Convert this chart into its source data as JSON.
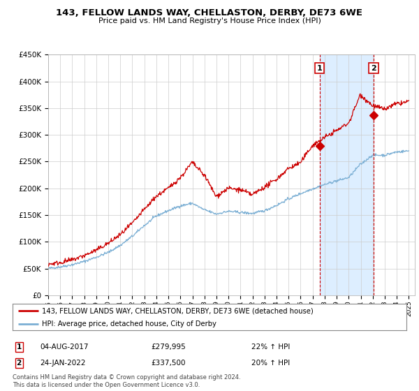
{
  "title": "143, FELLOW LANDS WAY, CHELLASTON, DERBY, DE73 6WE",
  "subtitle": "Price paid vs. HM Land Registry's House Price Index (HPI)",
  "legend_line1": "143, FELLOW LANDS WAY, CHELLASTON, DERBY, DE73 6WE (detached house)",
  "legend_line2": "HPI: Average price, detached house, City of Derby",
  "transaction1_date": "04-AUG-2017",
  "transaction1_price": "£279,995",
  "transaction1_hpi": "22% ↑ HPI",
  "transaction1_year": 2017.58,
  "transaction1_value": 279995,
  "transaction2_date": "24-JAN-2022",
  "transaction2_price": "£337,500",
  "transaction2_hpi": "20% ↑ HPI",
  "transaction2_year": 2022.07,
  "transaction2_value": 337500,
  "footer": "Contains HM Land Registry data © Crown copyright and database right 2024.\nThis data is licensed under the Open Government Licence v3.0.",
  "red_color": "#cc0000",
  "blue_color": "#7bafd4",
  "shade_color": "#ddeeff",
  "ylim": [
    0,
    450000
  ],
  "xlim_start": 1995.0,
  "xlim_end": 2025.5,
  "bg_color": "#ffffff",
  "grid_color": "#cccccc",
  "hpi_base_years": [
    1995,
    1996,
    1997,
    1998,
    1999,
    2000,
    2001,
    2002,
    2003,
    2004,
    2005,
    2006,
    2007,
    2008,
    2009,
    2010,
    2011,
    2012,
    2013,
    2014,
    2015,
    2016,
    2017,
    2018,
    2019,
    2020,
    2021,
    2022,
    2023,
    2024,
    2025
  ],
  "hpi_base_values": [
    50000,
    53000,
    57000,
    63000,
    71000,
    80000,
    93000,
    110000,
    130000,
    148000,
    158000,
    167000,
    172000,
    160000,
    152000,
    157000,
    155000,
    153000,
    158000,
    168000,
    180000,
    190000,
    199000,
    207000,
    214000,
    220000,
    245000,
    262000,
    262000,
    268000,
    270000
  ],
  "red_base_years": [
    1995,
    1996,
    1997,
    1998,
    1999,
    2000,
    2001,
    2002,
    2003,
    2004,
    2005,
    2006,
    2007,
    2008,
    2009,
    2010,
    2011,
    2012,
    2013,
    2014,
    2015,
    2016,
    2017,
    2018,
    2019,
    2020,
    2021,
    2022,
    2023,
    2024,
    2025
  ],
  "red_base_values": [
    58000,
    61000,
    66000,
    74000,
    84000,
    97000,
    113000,
    134000,
    160000,
    185000,
    200000,
    220000,
    248000,
    225000,
    185000,
    200000,
    197000,
    188000,
    202000,
    217000,
    237000,
    248000,
    279995,
    295000,
    308000,
    322000,
    375000,
    355000,
    348000,
    358000,
    362000
  ]
}
